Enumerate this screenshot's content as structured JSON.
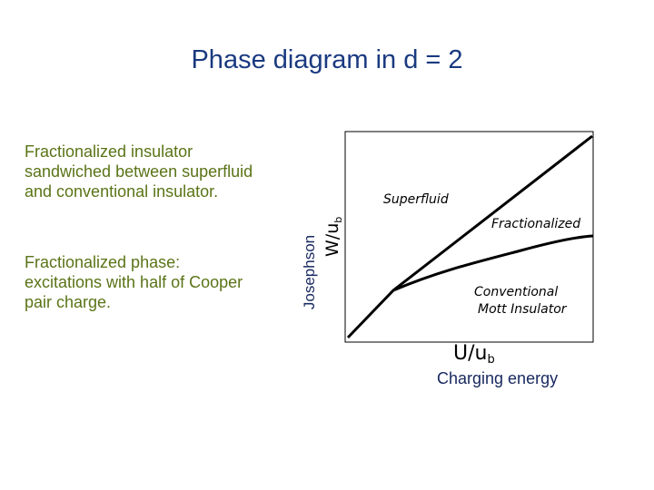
{
  "title": "Phase diagram in d = 2",
  "notes": [
    {
      "lines": [
        "Fractionalized insulator",
        "sandwiched between superfluid",
        "and conventional insulator."
      ]
    },
    {
      "lines": [
        "Fractionalized phase:",
        "excitations with half of Cooper",
        "pair charge."
      ]
    }
  ],
  "diagram": {
    "y_axis_caption": "Josephson",
    "x_axis_caption": "Charging energy",
    "y_label": {
      "main": "W/u",
      "sub": "b"
    },
    "x_label": {
      "main": "U/u",
      "sub": "b"
    },
    "regions": [
      "Superfluid",
      "Fractionalized",
      "Conventional",
      "Mott Insulator"
    ]
  }
}
